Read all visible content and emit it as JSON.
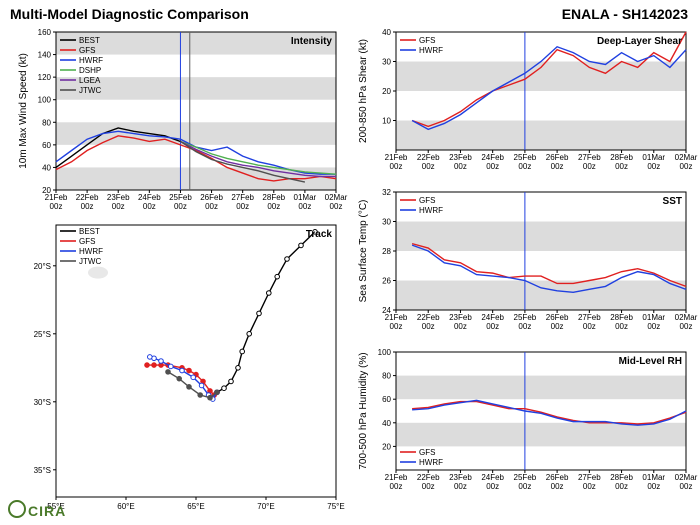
{
  "titles": {
    "left": "Multi-Model Diagnostic Comparison",
    "right": "ENALA - SH142023"
  },
  "logo": "CIRA",
  "colors": {
    "gfs": "#e02020",
    "hwrf": "#2040e0",
    "best": "#000000",
    "dshp": "#50b050",
    "lgea": "#7030a0",
    "jtwc": "#505050",
    "band": "#dcdcdc",
    "axis": "#000000",
    "vline": "#2040e0",
    "vline2": "#606060"
  },
  "time_axis": {
    "ticks": [
      "21Feb\n00z",
      "22Feb\n00z",
      "23Feb\n00z",
      "24Feb\n00z",
      "25Feb\n00z",
      "26Feb\n00z",
      "27Feb\n00z",
      "28Feb\n00z",
      "01Mar\n00z",
      "02Mar\n00z"
    ],
    "vline_at": 4.0,
    "vline2_at": 4.3
  },
  "intensity": {
    "label": "Intensity",
    "ylabel": "10m Max Wind Speed (kt)",
    "ylim": [
      20,
      160
    ],
    "yticks": [
      20,
      40,
      60,
      80,
      100,
      120,
      140,
      160
    ],
    "bands": [
      [
        20,
        40
      ],
      [
        60,
        80
      ],
      [
        100,
        120
      ],
      [
        140,
        160
      ]
    ],
    "legend": [
      "BEST",
      "GFS",
      "HWRF",
      "DSHP",
      "LGEA",
      "JTWC"
    ],
    "legend_colors": [
      "best",
      "gfs",
      "hwrf",
      "dshp",
      "lgea",
      "jtwc"
    ],
    "series": {
      "best": [
        [
          0,
          40
        ],
        [
          0.5,
          50
        ],
        [
          1,
          60
        ],
        [
          1.5,
          70
        ],
        [
          2,
          75
        ],
        [
          2.5,
          72
        ],
        [
          3,
          70
        ],
        [
          3.5,
          68
        ],
        [
          4,
          63
        ]
      ],
      "gfs": [
        [
          0,
          38
        ],
        [
          0.5,
          45
        ],
        [
          1,
          55
        ],
        [
          1.5,
          62
        ],
        [
          2,
          68
        ],
        [
          2.5,
          66
        ],
        [
          3,
          63
        ],
        [
          3.5,
          65
        ],
        [
          4,
          60
        ],
        [
          4.5,
          55
        ],
        [
          5,
          48
        ],
        [
          5.5,
          40
        ],
        [
          6,
          35
        ],
        [
          6.5,
          30
        ],
        [
          7,
          28
        ],
        [
          7.5,
          30
        ],
        [
          8,
          30
        ],
        [
          8.5,
          32
        ],
        [
          9,
          30
        ]
      ],
      "hwrf": [
        [
          0,
          45
        ],
        [
          0.5,
          55
        ],
        [
          1,
          65
        ],
        [
          1.5,
          70
        ],
        [
          2,
          72
        ],
        [
          2.5,
          70
        ],
        [
          3,
          68
        ],
        [
          3.5,
          67
        ],
        [
          4,
          65
        ],
        [
          4.5,
          58
        ],
        [
          5,
          55
        ],
        [
          5.5,
          58
        ],
        [
          6,
          50
        ],
        [
          6.5,
          45
        ],
        [
          7,
          42
        ],
        [
          7.5,
          38
        ],
        [
          8,
          35
        ],
        [
          8.5,
          34
        ],
        [
          9,
          34
        ]
      ],
      "dshp": [
        [
          4,
          63
        ],
        [
          4.5,
          58
        ],
        [
          5,
          52
        ],
        [
          5.5,
          48
        ],
        [
          6,
          45
        ],
        [
          6.5,
          42
        ],
        [
          7,
          40
        ],
        [
          7.5,
          38
        ],
        [
          8,
          36
        ],
        [
          8.5,
          35
        ],
        [
          9,
          34
        ]
      ],
      "lgea": [
        [
          4,
          63
        ],
        [
          4.5,
          56
        ],
        [
          5,
          50
        ],
        [
          5.5,
          45
        ],
        [
          6,
          42
        ],
        [
          6.5,
          40
        ],
        [
          7,
          37
        ],
        [
          7.5,
          35
        ],
        [
          8,
          33
        ],
        [
          8.5,
          32
        ],
        [
          9,
          32
        ]
      ],
      "jtwc": [
        [
          4,
          63
        ],
        [
          4.5,
          54
        ],
        [
          5,
          47
        ],
        [
          5.5,
          43
        ],
        [
          6,
          40
        ],
        [
          6.5,
          37
        ],
        [
          7,
          33
        ],
        [
          7.5,
          30
        ],
        [
          8,
          27
        ]
      ]
    }
  },
  "shear": {
    "label": "Deep-Layer Shear",
    "ylabel": "200-850 hPa Shear (kt)",
    "ylim": [
      0,
      40
    ],
    "yticks": [
      10,
      20,
      30,
      40
    ],
    "bands": [
      [
        0,
        10
      ],
      [
        20,
        30
      ]
    ],
    "legend": [
      "GFS",
      "HWRF"
    ],
    "legend_colors": [
      "gfs",
      "hwrf"
    ],
    "series": {
      "gfs": [
        [
          0.5,
          10
        ],
        [
          1,
          8
        ],
        [
          1.5,
          10
        ],
        [
          2,
          13
        ],
        [
          2.5,
          17
        ],
        [
          3,
          20
        ],
        [
          3.5,
          22
        ],
        [
          4,
          24
        ],
        [
          4.5,
          28
        ],
        [
          5,
          34
        ],
        [
          5.5,
          32
        ],
        [
          6,
          28
        ],
        [
          6.5,
          26
        ],
        [
          7,
          30
        ],
        [
          7.5,
          28
        ],
        [
          8,
          33
        ],
        [
          8.5,
          30
        ],
        [
          9,
          40
        ]
      ],
      "hwrf": [
        [
          0.5,
          10
        ],
        [
          1,
          7
        ],
        [
          1.5,
          9
        ],
        [
          2,
          12
        ],
        [
          2.5,
          16
        ],
        [
          3,
          20
        ],
        [
          3.5,
          23
        ],
        [
          4,
          26
        ],
        [
          4.5,
          30
        ],
        [
          5,
          35
        ],
        [
          5.5,
          33
        ],
        [
          6,
          30
        ],
        [
          6.5,
          29
        ],
        [
          7,
          33
        ],
        [
          7.5,
          30
        ],
        [
          8,
          32
        ],
        [
          8.5,
          28
        ],
        [
          9,
          34
        ]
      ]
    }
  },
  "sst": {
    "label": "SST",
    "ylabel": "Sea Surface Temp (°C)",
    "ylim": [
      24,
      32
    ],
    "yticks": [
      24,
      26,
      28,
      30,
      32
    ],
    "bands": [
      [
        24,
        26
      ],
      [
        28,
        30
      ]
    ],
    "legend": [
      "GFS",
      "HWRF"
    ],
    "legend_colors": [
      "gfs",
      "hwrf"
    ],
    "series": {
      "gfs": [
        [
          0.5,
          28.5
        ],
        [
          1,
          28.2
        ],
        [
          1.5,
          27.4
        ],
        [
          2,
          27.2
        ],
        [
          2.5,
          26.6
        ],
        [
          3,
          26.5
        ],
        [
          3.5,
          26.2
        ],
        [
          4,
          26.3
        ],
        [
          4.5,
          26.3
        ],
        [
          5,
          25.8
        ],
        [
          5.5,
          25.8
        ],
        [
          6,
          26.0
        ],
        [
          6.5,
          26.2
        ],
        [
          7,
          26.6
        ],
        [
          7.5,
          26.8
        ],
        [
          8,
          26.5
        ],
        [
          8.5,
          26.0
        ],
        [
          9,
          25.6
        ]
      ],
      "hwrf": [
        [
          0.5,
          28.4
        ],
        [
          1,
          28.0
        ],
        [
          1.5,
          27.2
        ],
        [
          2,
          27.0
        ],
        [
          2.5,
          26.4
        ],
        [
          3,
          26.3
        ],
        [
          3.5,
          26.2
        ],
        [
          4,
          26.0
        ],
        [
          4.5,
          25.5
        ],
        [
          5,
          25.3
        ],
        [
          5.5,
          25.2
        ],
        [
          6,
          25.4
        ],
        [
          6.5,
          25.6
        ],
        [
          7,
          26.2
        ],
        [
          7.5,
          26.6
        ],
        [
          8,
          26.4
        ],
        [
          8.5,
          25.8
        ],
        [
          9,
          25.4
        ]
      ]
    }
  },
  "rh": {
    "label": "Mid-Level RH",
    "ylabel": "700-500 hPa Humidity (%)",
    "ylim": [
      0,
      100
    ],
    "yticks": [
      20,
      40,
      60,
      80,
      100
    ],
    "bands": [
      [
        20,
        40
      ],
      [
        60,
        80
      ]
    ],
    "legend": [
      "GFS",
      "HWRF"
    ],
    "legend_colors": [
      "gfs",
      "hwrf"
    ],
    "series": {
      "gfs": [
        [
          0.5,
          52
        ],
        [
          1,
          53
        ],
        [
          1.5,
          56
        ],
        [
          2,
          58
        ],
        [
          2.5,
          58
        ],
        [
          3,
          55
        ],
        [
          3.5,
          52
        ],
        [
          4,
          52
        ],
        [
          4.5,
          49
        ],
        [
          5,
          45
        ],
        [
          5.5,
          42
        ],
        [
          6,
          40
        ],
        [
          6.5,
          40
        ],
        [
          7,
          40
        ],
        [
          7.5,
          39
        ],
        [
          8,
          40
        ],
        [
          8.5,
          44
        ],
        [
          9,
          49
        ]
      ],
      "hwrf": [
        [
          0.5,
          51
        ],
        [
          1,
          52
        ],
        [
          1.5,
          55
        ],
        [
          2,
          57
        ],
        [
          2.5,
          59
        ],
        [
          3,
          56
        ],
        [
          3.5,
          53
        ],
        [
          4,
          50
        ],
        [
          4.5,
          48
        ],
        [
          5,
          44
        ],
        [
          5.5,
          41
        ],
        [
          6,
          41
        ],
        [
          6.5,
          41
        ],
        [
          7,
          39
        ],
        [
          7.5,
          38
        ],
        [
          8,
          39
        ],
        [
          8.5,
          43
        ],
        [
          9,
          50
        ]
      ]
    }
  },
  "track": {
    "label": "Track",
    "xlabel_ticks": [
      "55°E",
      "60°E",
      "65°E",
      "70°E",
      "75°E"
    ],
    "xlim": [
      55,
      75
    ],
    "ylabel_ticks": [
      "20°S",
      "25°S",
      "30°S",
      "35°S"
    ],
    "ylim": [
      17,
      37
    ],
    "legend": [
      "BEST",
      "GFS",
      "HWRF",
      "JTWC"
    ],
    "legend_colors": [
      "best",
      "gfs",
      "hwrf",
      "jtwc"
    ],
    "series": {
      "best": [
        [
          73.5,
          17.5
        ],
        [
          72.5,
          18.5
        ],
        [
          71.5,
          19.5
        ],
        [
          70.8,
          20.8
        ],
        [
          70.2,
          22.0
        ],
        [
          69.5,
          23.5
        ],
        [
          68.8,
          25.0
        ],
        [
          68.3,
          26.3
        ],
        [
          68.0,
          27.5
        ],
        [
          67.5,
          28.5
        ],
        [
          67.0,
          29.0
        ],
        [
          66.5,
          29.3
        ]
      ],
      "gfs": [
        [
          66.5,
          29.3
        ],
        [
          66.3,
          29.5
        ],
        [
          66.0,
          29.2
        ],
        [
          65.5,
          28.5
        ],
        [
          65.0,
          28.0
        ],
        [
          64.5,
          27.7
        ],
        [
          64.0,
          27.5
        ],
        [
          63.0,
          27.3
        ],
        [
          62.5,
          27.3
        ],
        [
          62.0,
          27.3
        ],
        [
          61.5,
          27.3
        ]
      ],
      "hwrf": [
        [
          66.5,
          29.3
        ],
        [
          66.2,
          29.8
        ],
        [
          65.9,
          29.5
        ],
        [
          65.4,
          28.8
        ],
        [
          64.8,
          28.2
        ],
        [
          64.0,
          27.7
        ],
        [
          63.2,
          27.4
        ],
        [
          62.5,
          27.0
        ],
        [
          62.0,
          26.8
        ],
        [
          61.7,
          26.7
        ]
      ],
      "jtwc": [
        [
          66.5,
          29.3
        ],
        [
          66.0,
          29.7
        ],
        [
          65.3,
          29.5
        ],
        [
          64.5,
          28.9
        ],
        [
          63.8,
          28.3
        ],
        [
          63.0,
          27.8
        ]
      ]
    },
    "markers_open": {
      "best": true,
      "hwrf": true
    }
  }
}
